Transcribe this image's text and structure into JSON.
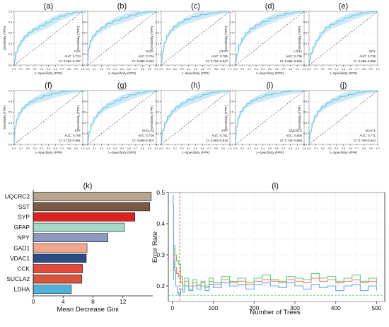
{
  "chart_data": [
    {
      "type": "line",
      "panel_label": "(a)",
      "marker": "CCK",
      "auc_text": "AUC: 0.724",
      "ci_text": "CI: 0.652–0.797",
      "xlabel": "1−Specificity (FPR)",
      "ylabel": "Sensitivity (TPR)",
      "xlim": [
        0,
        1
      ],
      "ylim": [
        0,
        1
      ],
      "xticks": [
        "0.0",
        "0.1",
        "0.2",
        "0.3",
        "0.4",
        "0.5",
        "0.6",
        "0.7",
        "0.8",
        "0.9",
        "1.0"
      ],
      "yticks": [
        "0.0",
        "0.2",
        "0.4",
        "0.6",
        "0.8",
        "1.0"
      ],
      "curve_color": "#6cc5e6",
      "band_color": "#cdeaf6",
      "x": [
        0,
        0.04,
        0.08,
        0.12,
        0.18,
        0.25,
        0.33,
        0.42,
        0.52,
        0.62,
        0.72,
        0.82,
        0.91,
        1.0
      ],
      "y": [
        0,
        0.24,
        0.36,
        0.45,
        0.54,
        0.61,
        0.67,
        0.73,
        0.79,
        0.86,
        0.91,
        0.95,
        0.985,
        1.0
      ]
    },
    {
      "type": "line",
      "panel_label": "(b)",
      "marker": "GAD1",
      "auc_text": "AUC: 0.754",
      "ci_text": "CI: 0.686–0.822",
      "xlabel": "1−Specificity (FPR)",
      "ylabel": "Sensitivity (TPR)",
      "xlim": [
        0,
        1
      ],
      "ylim": [
        0,
        1
      ],
      "xticks": [
        "0.0",
        "0.1",
        "0.2",
        "0.3",
        "0.4",
        "0.5",
        "0.6",
        "0.7",
        "0.8",
        "0.9",
        "1.0"
      ],
      "yticks": [
        "0.0",
        "0.2",
        "0.4",
        "0.6",
        "0.8",
        "1.0"
      ],
      "curve_color": "#6cc5e6",
      "band_color": "#cdeaf6",
      "x": [
        0,
        0.02,
        0.05,
        0.1,
        0.16,
        0.24,
        0.33,
        0.44,
        0.56,
        0.68,
        0.8,
        0.9,
        1.0
      ],
      "y": [
        0,
        0.3,
        0.45,
        0.55,
        0.63,
        0.7,
        0.77,
        0.83,
        0.88,
        0.93,
        0.97,
        0.99,
        1.0
      ]
    },
    {
      "type": "line",
      "panel_label": "(c)",
      "marker": "GFAP",
      "auc_text": "AUC: 0.785",
      "ci_text": "CI: 0.722–0.847",
      "xlabel": "1−Specificity (FPR)",
      "ylabel": "Sensitivity (TPR)",
      "xlim": [
        0,
        1
      ],
      "ylim": [
        0,
        1
      ],
      "xticks": [
        "0.0",
        "0.1",
        "0.2",
        "0.3",
        "0.4",
        "0.5",
        "0.6",
        "0.7",
        "0.8",
        "0.9",
        "1.0"
      ],
      "yticks": [
        "0.0",
        "0.2",
        "0.4",
        "0.6",
        "0.8",
        "1.0"
      ],
      "curve_color": "#6cc5e6",
      "band_color": "#cdeaf6",
      "x": [
        0,
        0.03,
        0.06,
        0.1,
        0.15,
        0.22,
        0.3,
        0.4,
        0.52,
        0.65,
        0.78,
        0.9,
        1.0
      ],
      "y": [
        0,
        0.25,
        0.42,
        0.55,
        0.64,
        0.72,
        0.79,
        0.85,
        0.9,
        0.94,
        0.97,
        0.99,
        1.0
      ]
    },
    {
      "type": "line",
      "panel_label": "(d)",
      "marker": "LDHA",
      "auc_text": "AUC: 0.736",
      "ci_text": "CI: 0.666–0.806",
      "xlabel": "1−Specificity (FPR)",
      "ylabel": "Sensitivity (TPR)",
      "xlim": [
        0,
        1
      ],
      "ylim": [
        0,
        1
      ],
      "xticks": [
        "0.0",
        "0.1",
        "0.2",
        "0.3",
        "0.4",
        "0.5",
        "0.6",
        "0.7",
        "0.8",
        "0.9",
        "1.0"
      ],
      "yticks": [
        "0.0",
        "0.2",
        "0.4",
        "0.6",
        "0.8",
        "1.0"
      ],
      "curve_color": "#6cc5e6",
      "band_color": "#cdeaf6",
      "x": [
        0,
        0.03,
        0.07,
        0.12,
        0.18,
        0.26,
        0.35,
        0.45,
        0.56,
        0.68,
        0.8,
        0.91,
        1.0
      ],
      "y": [
        0,
        0.2,
        0.38,
        0.5,
        0.6,
        0.68,
        0.75,
        0.81,
        0.87,
        0.92,
        0.96,
        0.99,
        1.0
      ]
    },
    {
      "type": "line",
      "panel_label": "(e)",
      "marker": "NPY",
      "auc_text": "AUC: 0.738",
      "ci_text": "CI: 0.666–0.809",
      "xlabel": "1−Specificity (FPR)",
      "ylabel": "Sensitivity (TPR)",
      "xlim": [
        0,
        1
      ],
      "ylim": [
        0,
        1
      ],
      "xticks": [
        "0.0",
        "0.1",
        "0.2",
        "0.3",
        "0.4",
        "0.5",
        "0.6",
        "0.7",
        "0.8",
        "0.9",
        "1.0"
      ],
      "yticks": [
        "0.0",
        "0.2",
        "0.4",
        "0.6",
        "0.8",
        "1.0"
      ],
      "curve_color": "#6cc5e6",
      "band_color": "#cdeaf6",
      "x": [
        0,
        0.04,
        0.08,
        0.13,
        0.2,
        0.28,
        0.37,
        0.47,
        0.58,
        0.7,
        0.82,
        0.92,
        1.0
      ],
      "y": [
        0,
        0.22,
        0.34,
        0.46,
        0.6,
        0.7,
        0.76,
        0.82,
        0.88,
        0.93,
        0.97,
        0.99,
        1.0
      ]
    },
    {
      "type": "line",
      "panel_label": "(f)",
      "marker": "SST",
      "auc_text": "AUC: 0.796",
      "ci_text": "CI: 0.732–0.861",
      "xlabel": "1−Specificity (FPR)",
      "ylabel": "Sensitivity (TPR)",
      "xlim": [
        0,
        1
      ],
      "ylim": [
        0,
        1
      ],
      "xticks": [
        "0.0",
        "0.1",
        "0.2",
        "0.3",
        "0.4",
        "0.5",
        "0.6",
        "0.7",
        "0.8",
        "0.9",
        "1.0"
      ],
      "yticks": [
        "0.0",
        "0.2",
        "0.4",
        "0.6",
        "0.8",
        "1.0"
      ],
      "curve_color": "#6cc5e6",
      "band_color": "#cdeaf6",
      "x": [
        0,
        0.02,
        0.05,
        0.09,
        0.14,
        0.2,
        0.28,
        0.38,
        0.5,
        0.63,
        0.76,
        0.89,
        1.0
      ],
      "y": [
        0,
        0.3,
        0.47,
        0.58,
        0.67,
        0.74,
        0.8,
        0.86,
        0.91,
        0.95,
        0.98,
        0.995,
        1.0
      ]
    },
    {
      "type": "line",
      "panel_label": "(g)",
      "marker": "SUCLA2",
      "auc_text": "AUC: 0.736",
      "ci_text": "CI: 0.666–0.807",
      "xlabel": "1−Specificity (FPR)",
      "ylabel": "Sensitivity (TPR)",
      "xlim": [
        0,
        1
      ],
      "ylim": [
        0,
        1
      ],
      "xticks": [
        "0.0",
        "0.1",
        "0.2",
        "0.3",
        "0.4",
        "0.5",
        "0.6",
        "0.7",
        "0.8",
        "0.9",
        "1.0"
      ],
      "yticks": [
        "0.0",
        "0.2",
        "0.4",
        "0.6",
        "0.8",
        "1.0"
      ],
      "curve_color": "#6cc5e6",
      "band_color": "#cdeaf6",
      "x": [
        0,
        0.03,
        0.07,
        0.12,
        0.18,
        0.26,
        0.35,
        0.45,
        0.56,
        0.68,
        0.8,
        0.91,
        1.0
      ],
      "y": [
        0,
        0.22,
        0.38,
        0.5,
        0.6,
        0.68,
        0.75,
        0.81,
        0.87,
        0.92,
        0.96,
        0.99,
        1.0
      ]
    },
    {
      "type": "line",
      "panel_label": "(h)",
      "marker": "SYP",
      "auc_text": "AUC: 0.751",
      "ci_text": "CI: 0.683–0.816",
      "xlabel": "1−Specificity (FPR)",
      "ylabel": "Sensitivity (TPR)",
      "xlim": [
        0,
        1
      ],
      "ylim": [
        0,
        1
      ],
      "xticks": [
        "0.0",
        "0.1",
        "0.2",
        "0.3",
        "0.4",
        "0.5",
        "0.6",
        "0.7",
        "0.8",
        "0.9",
        "1.0"
      ],
      "yticks": [
        "0.0",
        "0.2",
        "0.4",
        "0.6",
        "0.8",
        "1.0"
      ],
      "curve_color": "#6cc5e6",
      "band_color": "#cdeaf6",
      "x": [
        0,
        0.03,
        0.07,
        0.12,
        0.18,
        0.26,
        0.35,
        0.45,
        0.56,
        0.68,
        0.8,
        0.91,
        1.0
      ],
      "y": [
        0,
        0.25,
        0.4,
        0.52,
        0.62,
        0.7,
        0.77,
        0.83,
        0.88,
        0.93,
        0.97,
        0.99,
        1.0
      ]
    },
    {
      "type": "line",
      "panel_label": "(i)",
      "marker": "UQCRC2",
      "auc_text": "AUC: 0.806",
      "ci_text": "CI: 0.744–0.868",
      "xlabel": "1−Specificity (FPR)",
      "ylabel": "Sensitivity (TPR)",
      "xlim": [
        0,
        1
      ],
      "ylim": [
        0,
        1
      ],
      "xticks": [
        "0.0",
        "0.1",
        "0.2",
        "0.3",
        "0.4",
        "0.5",
        "0.6",
        "0.7",
        "0.8",
        "0.9",
        "1.0"
      ],
      "yticks": [
        "0.0",
        "0.2",
        "0.4",
        "0.6",
        "0.8",
        "1.0"
      ],
      "curve_color": "#6cc5e6",
      "band_color": "#cdeaf6",
      "x": [
        0,
        0.02,
        0.05,
        0.09,
        0.14,
        0.2,
        0.28,
        0.38,
        0.5,
        0.63,
        0.76,
        0.89,
        1.0
      ],
      "y": [
        0,
        0.32,
        0.5,
        0.61,
        0.69,
        0.76,
        0.82,
        0.87,
        0.92,
        0.95,
        0.98,
        0.995,
        1.0
      ]
    },
    {
      "type": "line",
      "panel_label": "(j)",
      "marker": "VDAC1",
      "auc_text": "AUC: 0.771",
      "ci_text": "CI: 0.709–0.840",
      "xlabel": "1−Specificity (FPR)",
      "ylabel": "Sensitivity (TPR)",
      "xlim": [
        0,
        1
      ],
      "ylim": [
        0,
        1
      ],
      "xticks": [
        "0.0",
        "0.1",
        "0.2",
        "0.3",
        "0.4",
        "0.5",
        "0.6",
        "0.7",
        "0.8",
        "0.9",
        "1.0"
      ],
      "yticks": [
        "0.0",
        "0.2",
        "0.4",
        "0.6",
        "0.8",
        "1.0"
      ],
      "curve_color": "#6cc5e6",
      "band_color": "#cdeaf6",
      "x": [
        0,
        0.03,
        0.06,
        0.1,
        0.15,
        0.22,
        0.3,
        0.4,
        0.52,
        0.65,
        0.78,
        0.9,
        1.0
      ],
      "y": [
        0,
        0.24,
        0.4,
        0.52,
        0.62,
        0.7,
        0.77,
        0.83,
        0.89,
        0.93,
        0.97,
        0.99,
        1.0
      ]
    },
    {
      "type": "bar",
      "orientation": "horizontal",
      "panel_label": "(k)",
      "xlabel": "Mean Decrease Gini",
      "xlim": [
        0,
        16
      ],
      "xticks": [
        0,
        4,
        8,
        12
      ],
      "categories": [
        "UQCRC2",
        "SST",
        "SYP",
        "GFAP",
        "NPY",
        "GAD1",
        "VDAC1",
        "CCK",
        "SUCLA2",
        "LDHA"
      ],
      "values": [
        15.8,
        15.6,
        13.6,
        12.2,
        10.0,
        7.2,
        7.1,
        6.6,
        6.5,
        5.1
      ],
      "colors": [
        "#b8a58f",
        "#7a5a45",
        "#e02020",
        "#a6d8c8",
        "#8e99bf",
        "#f4a788",
        "#2e4b86",
        "#e64a3a",
        "#d9533a",
        "#4fb3d9"
      ]
    },
    {
      "type": "line",
      "panel_label": "(l)",
      "xlabel": "Number of Trees",
      "ylabel": "Error Rate",
      "xlim": [
        -10,
        520
      ],
      "ylim": [
        0.15,
        0.5
      ],
      "xticks": [
        0,
        100,
        200,
        300,
        400,
        500
      ],
      "yticks": [
        0.2,
        0.3,
        0.4,
        0.5
      ],
      "grid": true,
      "vline_x": 18,
      "hline_y": 0.17,
      "series": [
        {
          "color": "#ff7f6e",
          "x": [
            1,
            3,
            6,
            10,
            15,
            20,
            25,
            30,
            40,
            50,
            60,
            70,
            80,
            90,
            100,
            120,
            140,
            160,
            180,
            200,
            220,
            240,
            260,
            280,
            300,
            320,
            340,
            360,
            380,
            400,
            420,
            440,
            460,
            480,
            500
          ],
          "values": [
            0.3,
            0.32,
            0.26,
            0.24,
            0.23,
            0.21,
            0.2,
            0.215,
            0.2,
            0.21,
            0.205,
            0.21,
            0.2,
            0.215,
            0.205,
            0.22,
            0.21,
            0.215,
            0.205,
            0.215,
            0.22,
            0.215,
            0.21,
            0.22,
            0.215,
            0.21,
            0.225,
            0.215,
            0.22,
            0.21,
            0.215,
            0.22,
            0.21,
            0.215,
            0.205
          ]
        },
        {
          "color": "#5ccf74",
          "x": [
            1,
            3,
            6,
            10,
            15,
            20,
            25,
            30,
            40,
            50,
            60,
            70,
            80,
            90,
            100,
            120,
            140,
            160,
            180,
            200,
            220,
            240,
            260,
            280,
            300,
            320,
            340,
            360,
            380,
            400,
            420,
            440,
            460,
            480,
            500
          ],
          "values": [
            0.22,
            0.33,
            0.3,
            0.28,
            0.27,
            0.23,
            0.19,
            0.225,
            0.19,
            0.22,
            0.2,
            0.215,
            0.195,
            0.225,
            0.21,
            0.23,
            0.215,
            0.225,
            0.21,
            0.225,
            0.235,
            0.22,
            0.215,
            0.23,
            0.225,
            0.22,
            0.24,
            0.225,
            0.23,
            0.215,
            0.225,
            0.235,
            0.215,
            0.225,
            0.21
          ]
        },
        {
          "color": "#6aa8ea",
          "x": [
            1,
            2,
            3,
            5,
            8,
            12,
            15,
            20,
            25,
            30,
            40,
            50,
            60,
            70,
            80,
            90,
            100,
            120,
            140,
            160,
            180,
            200,
            220,
            240,
            260,
            280,
            300,
            320,
            340,
            360,
            380,
            400,
            420,
            440,
            460,
            480,
            500
          ],
          "values": [
            0.49,
            0.46,
            0.28,
            0.25,
            0.2,
            0.18,
            0.17,
            0.19,
            0.18,
            0.2,
            0.185,
            0.2,
            0.19,
            0.2,
            0.185,
            0.205,
            0.195,
            0.21,
            0.2,
            0.205,
            0.19,
            0.205,
            0.21,
            0.2,
            0.195,
            0.21,
            0.2,
            0.19,
            0.205,
            0.195,
            0.2,
            0.185,
            0.2,
            0.205,
            0.185,
            0.2,
            0.185
          ]
        }
      ]
    }
  ]
}
